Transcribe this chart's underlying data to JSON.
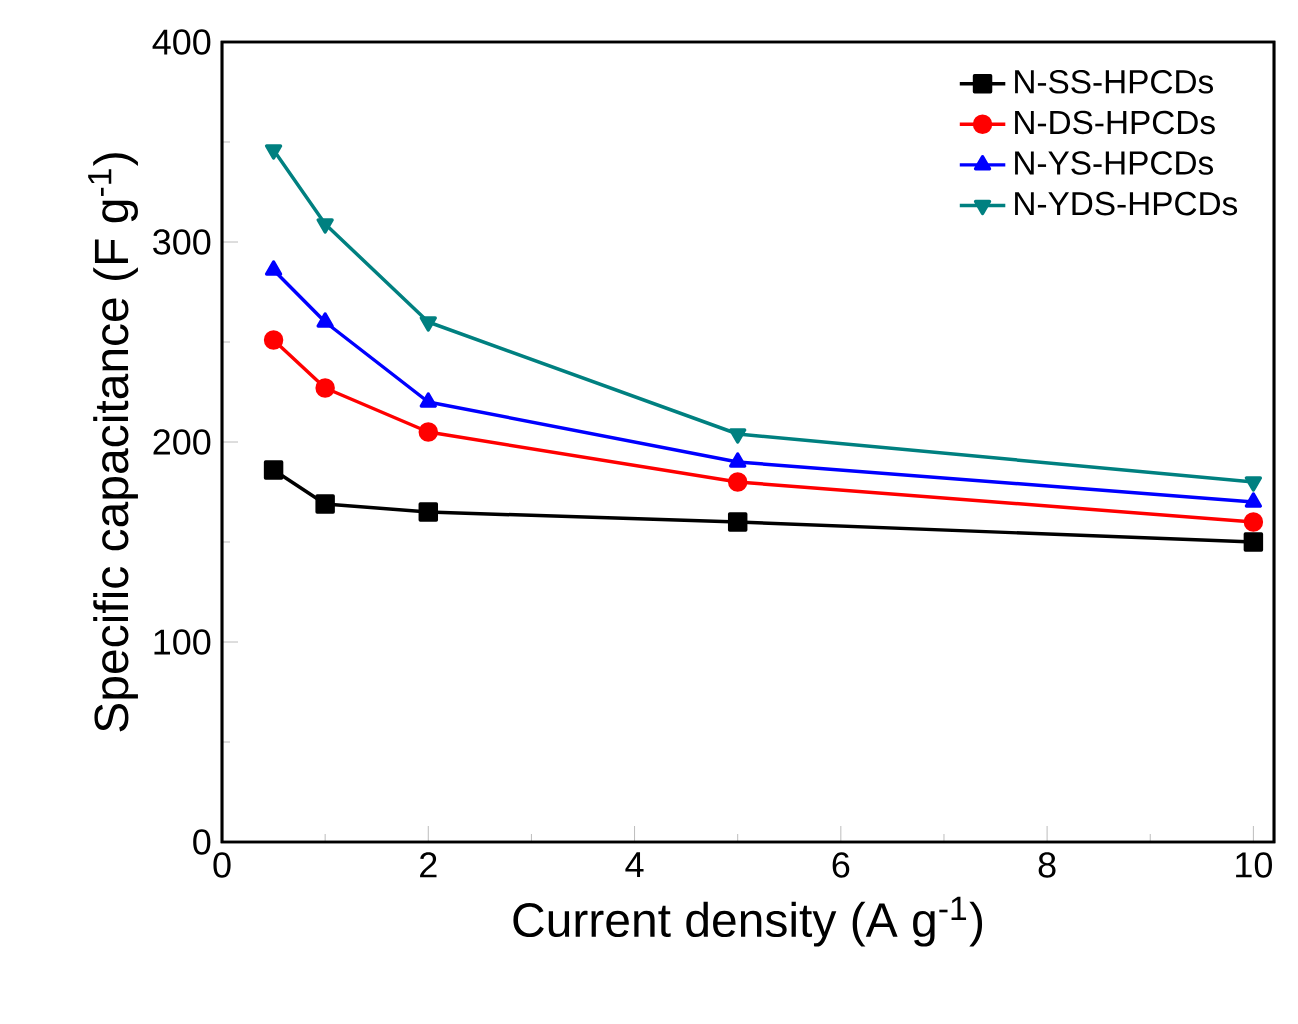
{
  "chart_data": {
    "type": "line",
    "xlabel": "Current density (A g$^{-1}$)",
    "ylabel": "Specific capacitance (F g$^{-1}$)",
    "x": [
      0.5,
      1,
      2,
      5,
      10
    ],
    "xlim": [
      0,
      10.2
    ],
    "xticks": [
      0,
      2,
      4,
      6,
      8,
      10
    ],
    "ylim": [
      0,
      400
    ],
    "yticks": [
      0,
      100,
      200,
      300,
      400
    ],
    "legend": "top right",
    "grid": false,
    "line_style": "solid",
    "series": [
      {
        "name": "N-SS-HPCDs",
        "color": "#000000",
        "marker": "square",
        "values": [
          186,
          169,
          165,
          160,
          150
        ]
      },
      {
        "name": "N-DS-HPCDs",
        "color": "#ff0000",
        "marker": "circle",
        "values": [
          251,
          227,
          205,
          180,
          160
        ]
      },
      {
        "name": "N-YS-HPCDs",
        "color": "#0000ff",
        "marker": "triangle",
        "values": [
          286,
          260,
          220,
          190,
          170
        ]
      },
      {
        "name": "N-YDS-HPCDs",
        "color": "#008080",
        "marker": "triangle down",
        "values": [
          346,
          309,
          260,
          204,
          180
        ]
      }
    ]
  }
}
